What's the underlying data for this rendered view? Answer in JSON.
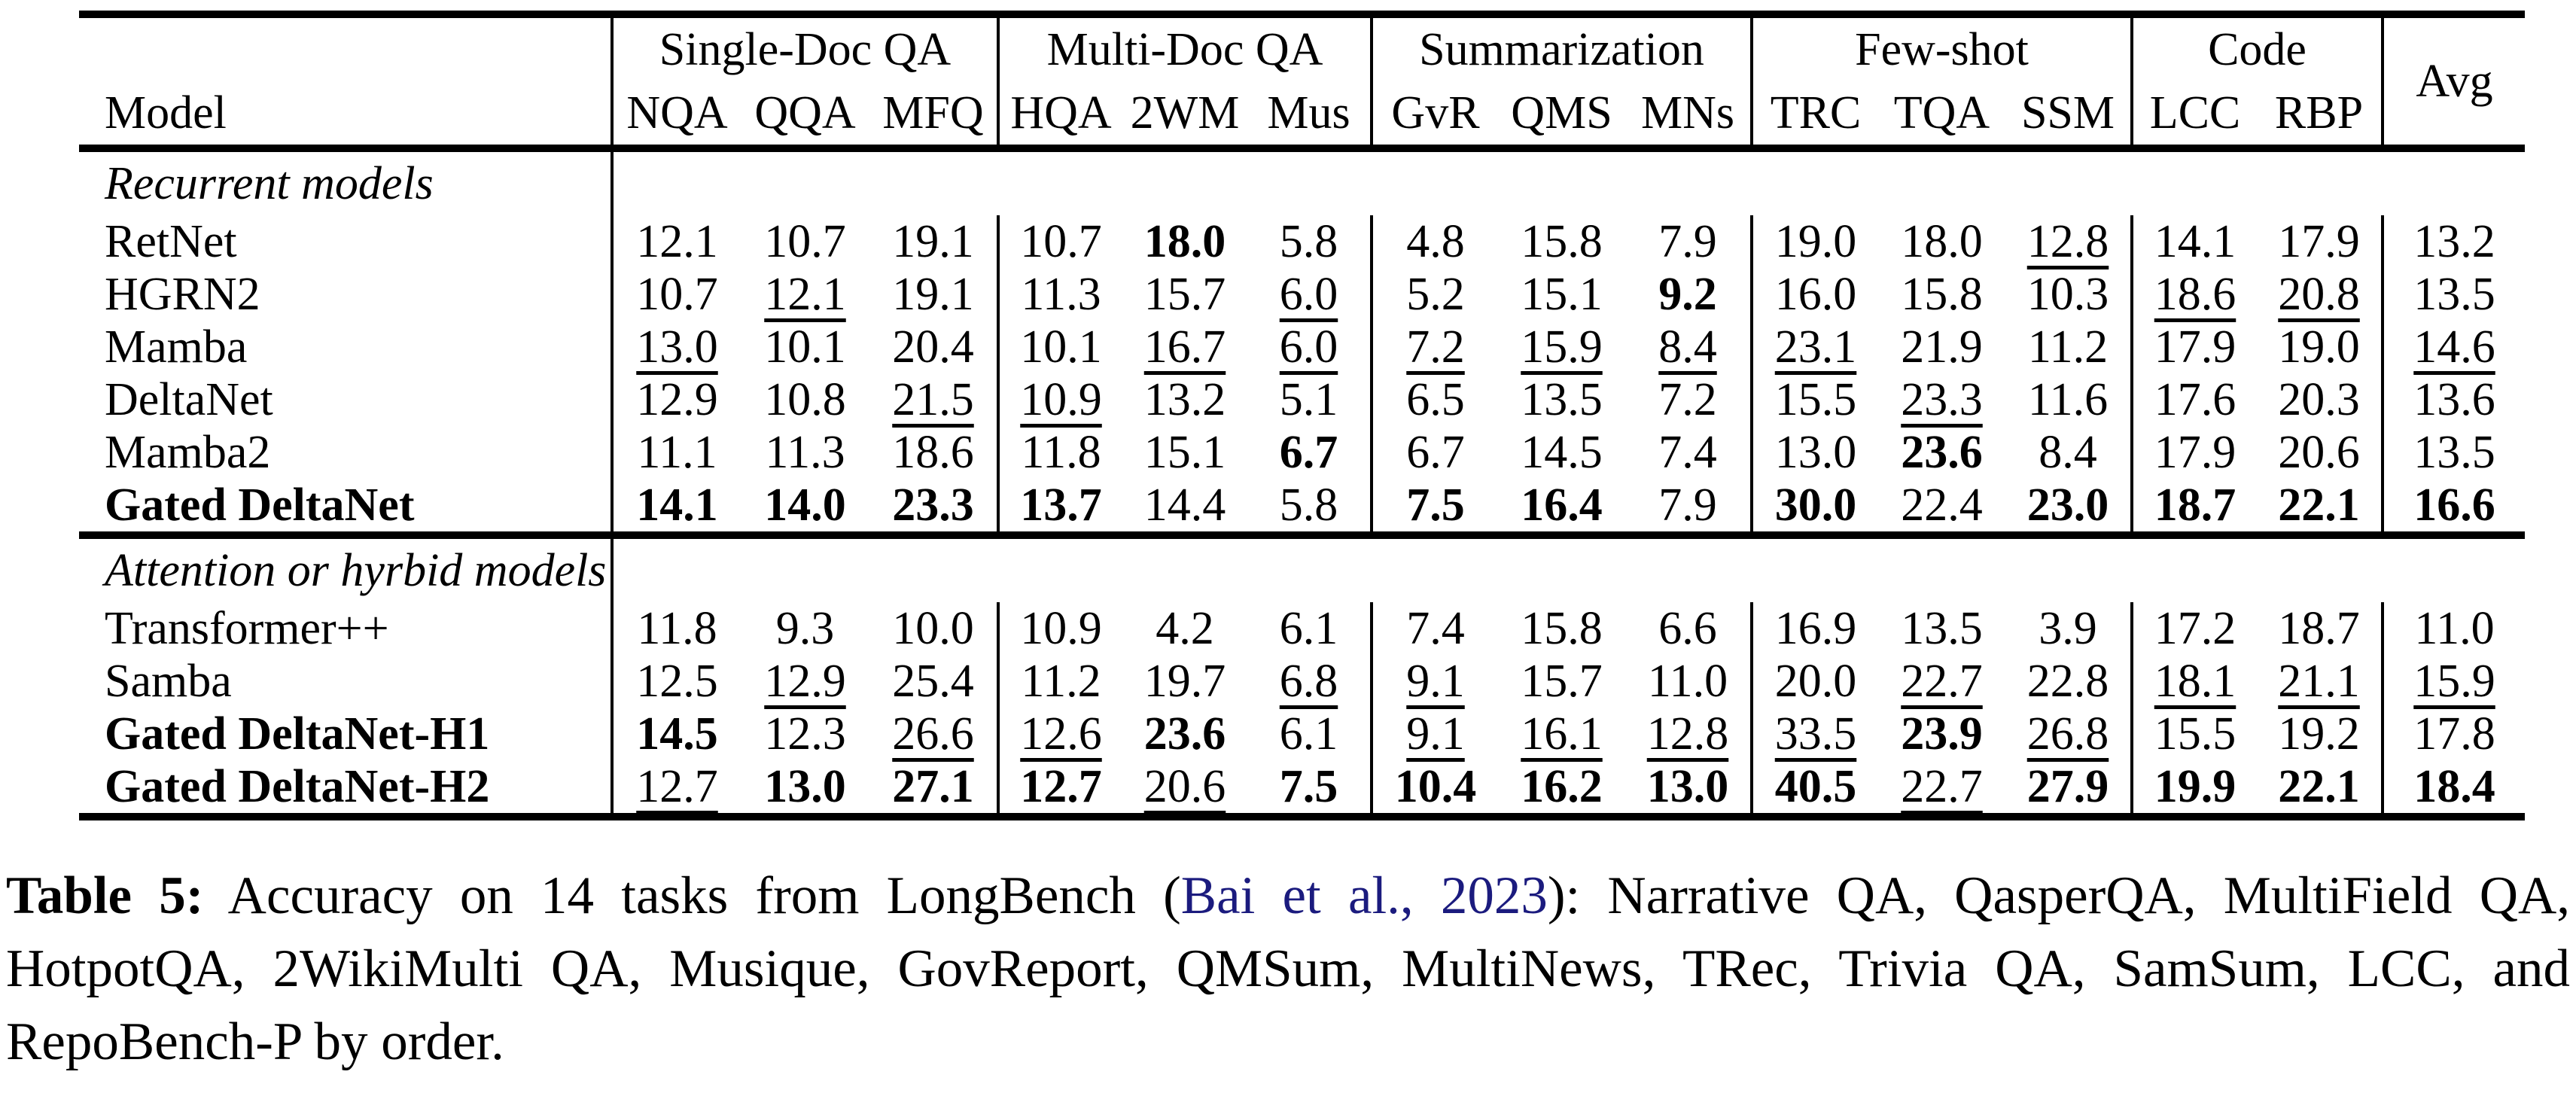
{
  "table": {
    "model_header": "Model",
    "groups": [
      "Single-Doc QA",
      "Multi-Doc QA",
      "Summarization",
      "Few-shot",
      "Code",
      "Avg"
    ],
    "cols": [
      "NQA",
      "QQA",
      "MFQ",
      "HQA",
      "2WM",
      "Mus",
      "GvR",
      "QMS",
      "MNs",
      "TRC",
      "TQA",
      "SSM",
      "LCC",
      "RBP"
    ],
    "sections": [
      {
        "title": "Recurrent models",
        "rows": [
          {
            "model": "RetNet",
            "bold": false,
            "cells": [
              {
                "v": "12.1"
              },
              {
                "v": "10.7"
              },
              {
                "v": "19.1"
              },
              {
                "v": "10.7"
              },
              {
                "v": "18.0",
                "b": true
              },
              {
                "v": "5.8"
              },
              {
                "v": "4.8"
              },
              {
                "v": "15.8"
              },
              {
                "v": "7.9"
              },
              {
                "v": "19.0"
              },
              {
                "v": "18.0"
              },
              {
                "v": "12.8",
                "u": true
              },
              {
                "v": "14.1"
              },
              {
                "v": "17.9"
              },
              {
                "v": "13.2"
              }
            ]
          },
          {
            "model": "HGRN2",
            "bold": false,
            "cells": [
              {
                "v": "10.7"
              },
              {
                "v": "12.1",
                "u": true
              },
              {
                "v": "19.1"
              },
              {
                "v": "11.3"
              },
              {
                "v": "15.7"
              },
              {
                "v": "6.0",
                "u": true
              },
              {
                "v": "5.2"
              },
              {
                "v": "15.1"
              },
              {
                "v": "9.2",
                "b": true
              },
              {
                "v": "16.0"
              },
              {
                "v": "15.8"
              },
              {
                "v": "10.3"
              },
              {
                "v": "18.6",
                "u": true
              },
              {
                "v": "20.8",
                "u": true
              },
              {
                "v": "13.5"
              }
            ]
          },
          {
            "model": "Mamba",
            "bold": false,
            "cells": [
              {
                "v": "13.0",
                "u": true
              },
              {
                "v": "10.1"
              },
              {
                "v": "20.4"
              },
              {
                "v": "10.1"
              },
              {
                "v": "16.7",
                "u": true
              },
              {
                "v": "6.0",
                "u": true
              },
              {
                "v": "7.2",
                "u": true
              },
              {
                "v": "15.9",
                "u": true
              },
              {
                "v": "8.4",
                "u": true
              },
              {
                "v": "23.1",
                "u": true
              },
              {
                "v": "21.9"
              },
              {
                "v": "11.2"
              },
              {
                "v": "17.9"
              },
              {
                "v": "19.0"
              },
              {
                "v": "14.6",
                "u": true
              }
            ]
          },
          {
            "model": "DeltaNet",
            "bold": false,
            "cells": [
              {
                "v": "12.9"
              },
              {
                "v": "10.8"
              },
              {
                "v": "21.5",
                "u": true
              },
              {
                "v": "10.9",
                "u": true
              },
              {
                "v": "13.2"
              },
              {
                "v": "5.1"
              },
              {
                "v": "6.5"
              },
              {
                "v": "13.5"
              },
              {
                "v": "7.2"
              },
              {
                "v": "15.5"
              },
              {
                "v": "23.3",
                "u": true
              },
              {
                "v": "11.6"
              },
              {
                "v": "17.6"
              },
              {
                "v": "20.3"
              },
              {
                "v": "13.6"
              }
            ]
          },
          {
            "model": "Mamba2",
            "bold": false,
            "cells": [
              {
                "v": "11.1"
              },
              {
                "v": "11.3"
              },
              {
                "v": "18.6"
              },
              {
                "v": "11.8"
              },
              {
                "v": "15.1"
              },
              {
                "v": "6.7",
                "b": true
              },
              {
                "v": "6.7"
              },
              {
                "v": "14.5"
              },
              {
                "v": "7.4"
              },
              {
                "v": "13.0"
              },
              {
                "v": "23.6",
                "b": true
              },
              {
                "v": "8.4"
              },
              {
                "v": "17.9"
              },
              {
                "v": "20.6"
              },
              {
                "v": "13.5"
              }
            ]
          },
          {
            "model": "Gated DeltaNet",
            "bold": true,
            "cells": [
              {
                "v": "14.1",
                "b": true
              },
              {
                "v": "14.0",
                "b": true
              },
              {
                "v": "23.3",
                "b": true
              },
              {
                "v": "13.7",
                "b": true
              },
              {
                "v": "14.4"
              },
              {
                "v": "5.8"
              },
              {
                "v": "7.5",
                "b": true
              },
              {
                "v": "16.4",
                "b": true
              },
              {
                "v": "7.9"
              },
              {
                "v": "30.0",
                "b": true
              },
              {
                "v": "22.4"
              },
              {
                "v": "23.0",
                "b": true
              },
              {
                "v": "18.7",
                "b": true
              },
              {
                "v": "22.1",
                "b": true
              },
              {
                "v": "16.6",
                "b": true
              }
            ]
          }
        ]
      },
      {
        "title": "Attention or hyrbid models",
        "rows": [
          {
            "model": "Transformer++",
            "bold": false,
            "cells": [
              {
                "v": "11.8"
              },
              {
                "v": "9.3"
              },
              {
                "v": "10.0"
              },
              {
                "v": "10.9"
              },
              {
                "v": "4.2"
              },
              {
                "v": "6.1"
              },
              {
                "v": "7.4"
              },
              {
                "v": "15.8"
              },
              {
                "v": "6.6"
              },
              {
                "v": "16.9"
              },
              {
                "v": "13.5"
              },
              {
                "v": "3.9"
              },
              {
                "v": "17.2"
              },
              {
                "v": "18.7"
              },
              {
                "v": "11.0"
              }
            ]
          },
          {
            "model": "Samba",
            "bold": false,
            "cells": [
              {
                "v": "12.5"
              },
              {
                "v": "12.9",
                "u": true
              },
              {
                "v": "25.4"
              },
              {
                "v": "11.2"
              },
              {
                "v": "19.7"
              },
              {
                "v": "6.8",
                "u": true
              },
              {
                "v": "9.1",
                "u": true
              },
              {
                "v": "15.7"
              },
              {
                "v": "11.0"
              },
              {
                "v": "20.0"
              },
              {
                "v": "22.7",
                "u": true
              },
              {
                "v": "22.8"
              },
              {
                "v": "18.1",
                "u": true
              },
              {
                "v": "21.1",
                "u": true
              },
              {
                "v": "15.9",
                "u": true
              }
            ]
          },
          {
            "model": "Gated DeltaNet-H1",
            "bold": true,
            "cells": [
              {
                "v": "14.5",
                "b": true
              },
              {
                "v": "12.3"
              },
              {
                "v": "26.6",
                "u": true
              },
              {
                "v": "12.6",
                "u": true
              },
              {
                "v": "23.6",
                "b": true
              },
              {
                "v": "6.1"
              },
              {
                "v": "9.1",
                "u": true
              },
              {
                "v": "16.1",
                "u": true
              },
              {
                "v": "12.8",
                "u": true
              },
              {
                "v": "33.5",
                "u": true
              },
              {
                "v": "23.9",
                "b": true
              },
              {
                "v": "26.8",
                "u": true
              },
              {
                "v": "15.5"
              },
              {
                "v": "19.2"
              },
              {
                "v": "17.8"
              }
            ]
          },
          {
            "model": "Gated DeltaNet-H2",
            "bold": true,
            "cells": [
              {
                "v": "12.7",
                "u": true
              },
              {
                "v": "13.0",
                "b": true
              },
              {
                "v": "27.1",
                "b": true
              },
              {
                "v": "12.7",
                "b": true
              },
              {
                "v": "20.6",
                "u": true
              },
              {
                "v": "7.5",
                "b": true
              },
              {
                "v": "10.4",
                "b": true
              },
              {
                "v": "16.2",
                "b": true
              },
              {
                "v": "13.0",
                "b": true
              },
              {
                "v": "40.5",
                "b": true
              },
              {
                "v": "22.7",
                "u": true
              },
              {
                "v": "27.9",
                "b": true
              },
              {
                "v": "19.9",
                "b": true
              },
              {
                "v": "22.1",
                "b": true
              },
              {
                "v": "18.4",
                "b": true
              }
            ]
          }
        ]
      }
    ]
  },
  "caption": {
    "label": "Table 5:",
    "pre": " Accuracy on 14 tasks from LongBench (",
    "citation": "Bai et al., 2023",
    "post": "): Narrative QA, QasperQA, MultiField QA, HotpotQA, 2WikiMulti QA, Musique, GovReport, QMSum, MultiNews, TRec, Trivia QA, SamSum, LCC, and RepoBench-P by order."
  }
}
